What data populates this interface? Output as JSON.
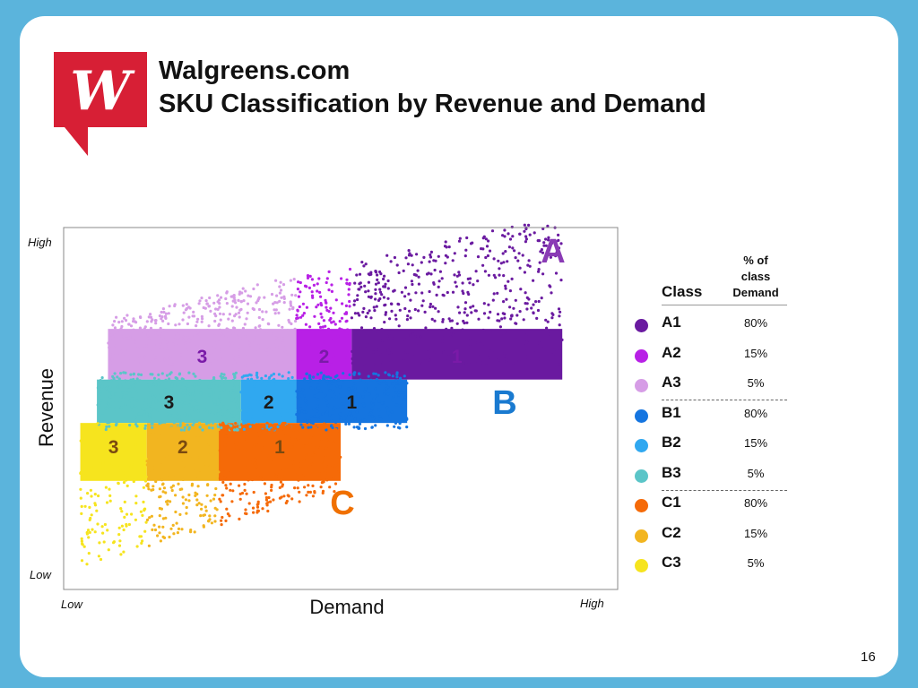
{
  "header": {
    "title_line1": "Walgreens.com",
    "title_line2": "SKU Classification by Revenue and Demand"
  },
  "logo": {
    "icon": "walgreens-w-logo",
    "letter": "W",
    "color": "#d71f35"
  },
  "page_number": "16",
  "chart_data": {
    "type": "scatter",
    "title": "",
    "xlabel": "Demand",
    "ylabel": "Revenue",
    "x_ticks": {
      "low": "Low",
      "high": "High"
    },
    "y_ticks": {
      "low": "Low",
      "high": "High"
    },
    "xlim": [
      0,
      1
    ],
    "ylim": [
      0,
      1
    ],
    "grid": false,
    "legend_position": "right",
    "regions": [
      {
        "name": "A",
        "color": "#8a3bb5",
        "bands": [
          {
            "label": "3",
            "class": "A3",
            "color": "#d69de6",
            "x_range": [
              0.08,
              0.42
            ]
          },
          {
            "label": "2",
            "class": "A2",
            "color": "#b820e6",
            "x_range": [
              0.42,
              0.52
            ]
          },
          {
            "label": "1",
            "class": "A1",
            "color": "#6a1aa0",
            "x_range": [
              0.52,
              0.9
            ]
          }
        ],
        "y_range": [
          0.64,
          0.92
        ]
      },
      {
        "name": "B",
        "color": "#1a7ad0",
        "bands": [
          {
            "label": "3",
            "class": "B3",
            "color": "#5bc5c8",
            "x_range": [
              0.06,
              0.32
            ]
          },
          {
            "label": "2",
            "class": "B2",
            "color": "#30a8f0",
            "x_range": [
              0.32,
              0.42
            ]
          },
          {
            "label": "1",
            "class": "B1",
            "color": "#1575e0",
            "x_range": [
              0.42,
              0.62
            ]
          }
        ],
        "y_range": [
          0.46,
          0.58
        ]
      },
      {
        "name": "C",
        "color": "#f07000",
        "bands": [
          {
            "label": "3",
            "class": "C3",
            "color": "#f6e41e",
            "x_range": [
              0.03,
              0.15
            ]
          },
          {
            "label": "2",
            "class": "C2",
            "color": "#f2b520",
            "x_range": [
              0.15,
              0.28
            ]
          },
          {
            "label": "1",
            "class": "C1",
            "color": "#f56a08",
            "x_range": [
              0.28,
              0.5
            ]
          }
        ],
        "y_range": [
          0.05,
          0.46
        ]
      }
    ],
    "legend": {
      "class_header": "Class",
      "pct_header_line1": "% of",
      "pct_header_line2": "class",
      "pct_header_line3": "Demand",
      "rows": [
        {
          "class": "A1",
          "pct": "80%",
          "color": "#6a1aa0"
        },
        {
          "class": "A2",
          "pct": "15%",
          "color": "#b820e6"
        },
        {
          "class": "A3",
          "pct": "5%",
          "color": "#d69de6"
        },
        {
          "class": "B1",
          "pct": "80%",
          "color": "#1575e0"
        },
        {
          "class": "B2",
          "pct": "15%",
          "color": "#30a8f0"
        },
        {
          "class": "B3",
          "pct": "5%",
          "color": "#5bc5c8"
        },
        {
          "class": "C1",
          "pct": "80%",
          "color": "#f56a08"
        },
        {
          "class": "C2",
          "pct": "15%",
          "color": "#f2b520"
        },
        {
          "class": "C3",
          "pct": "5%",
          "color": "#f6e41e"
        }
      ]
    }
  }
}
